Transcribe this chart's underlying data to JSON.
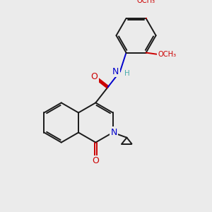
{
  "background_color": "#ebebeb",
  "bond_color": "#1a1a1a",
  "nitrogen_color": "#0000cc",
  "oxygen_color": "#cc0000",
  "h_color": "#4aacac",
  "lw": 1.4,
  "bl": 1.0,
  "xlim": [
    0,
    10
  ],
  "ylim": [
    0,
    10
  ]
}
